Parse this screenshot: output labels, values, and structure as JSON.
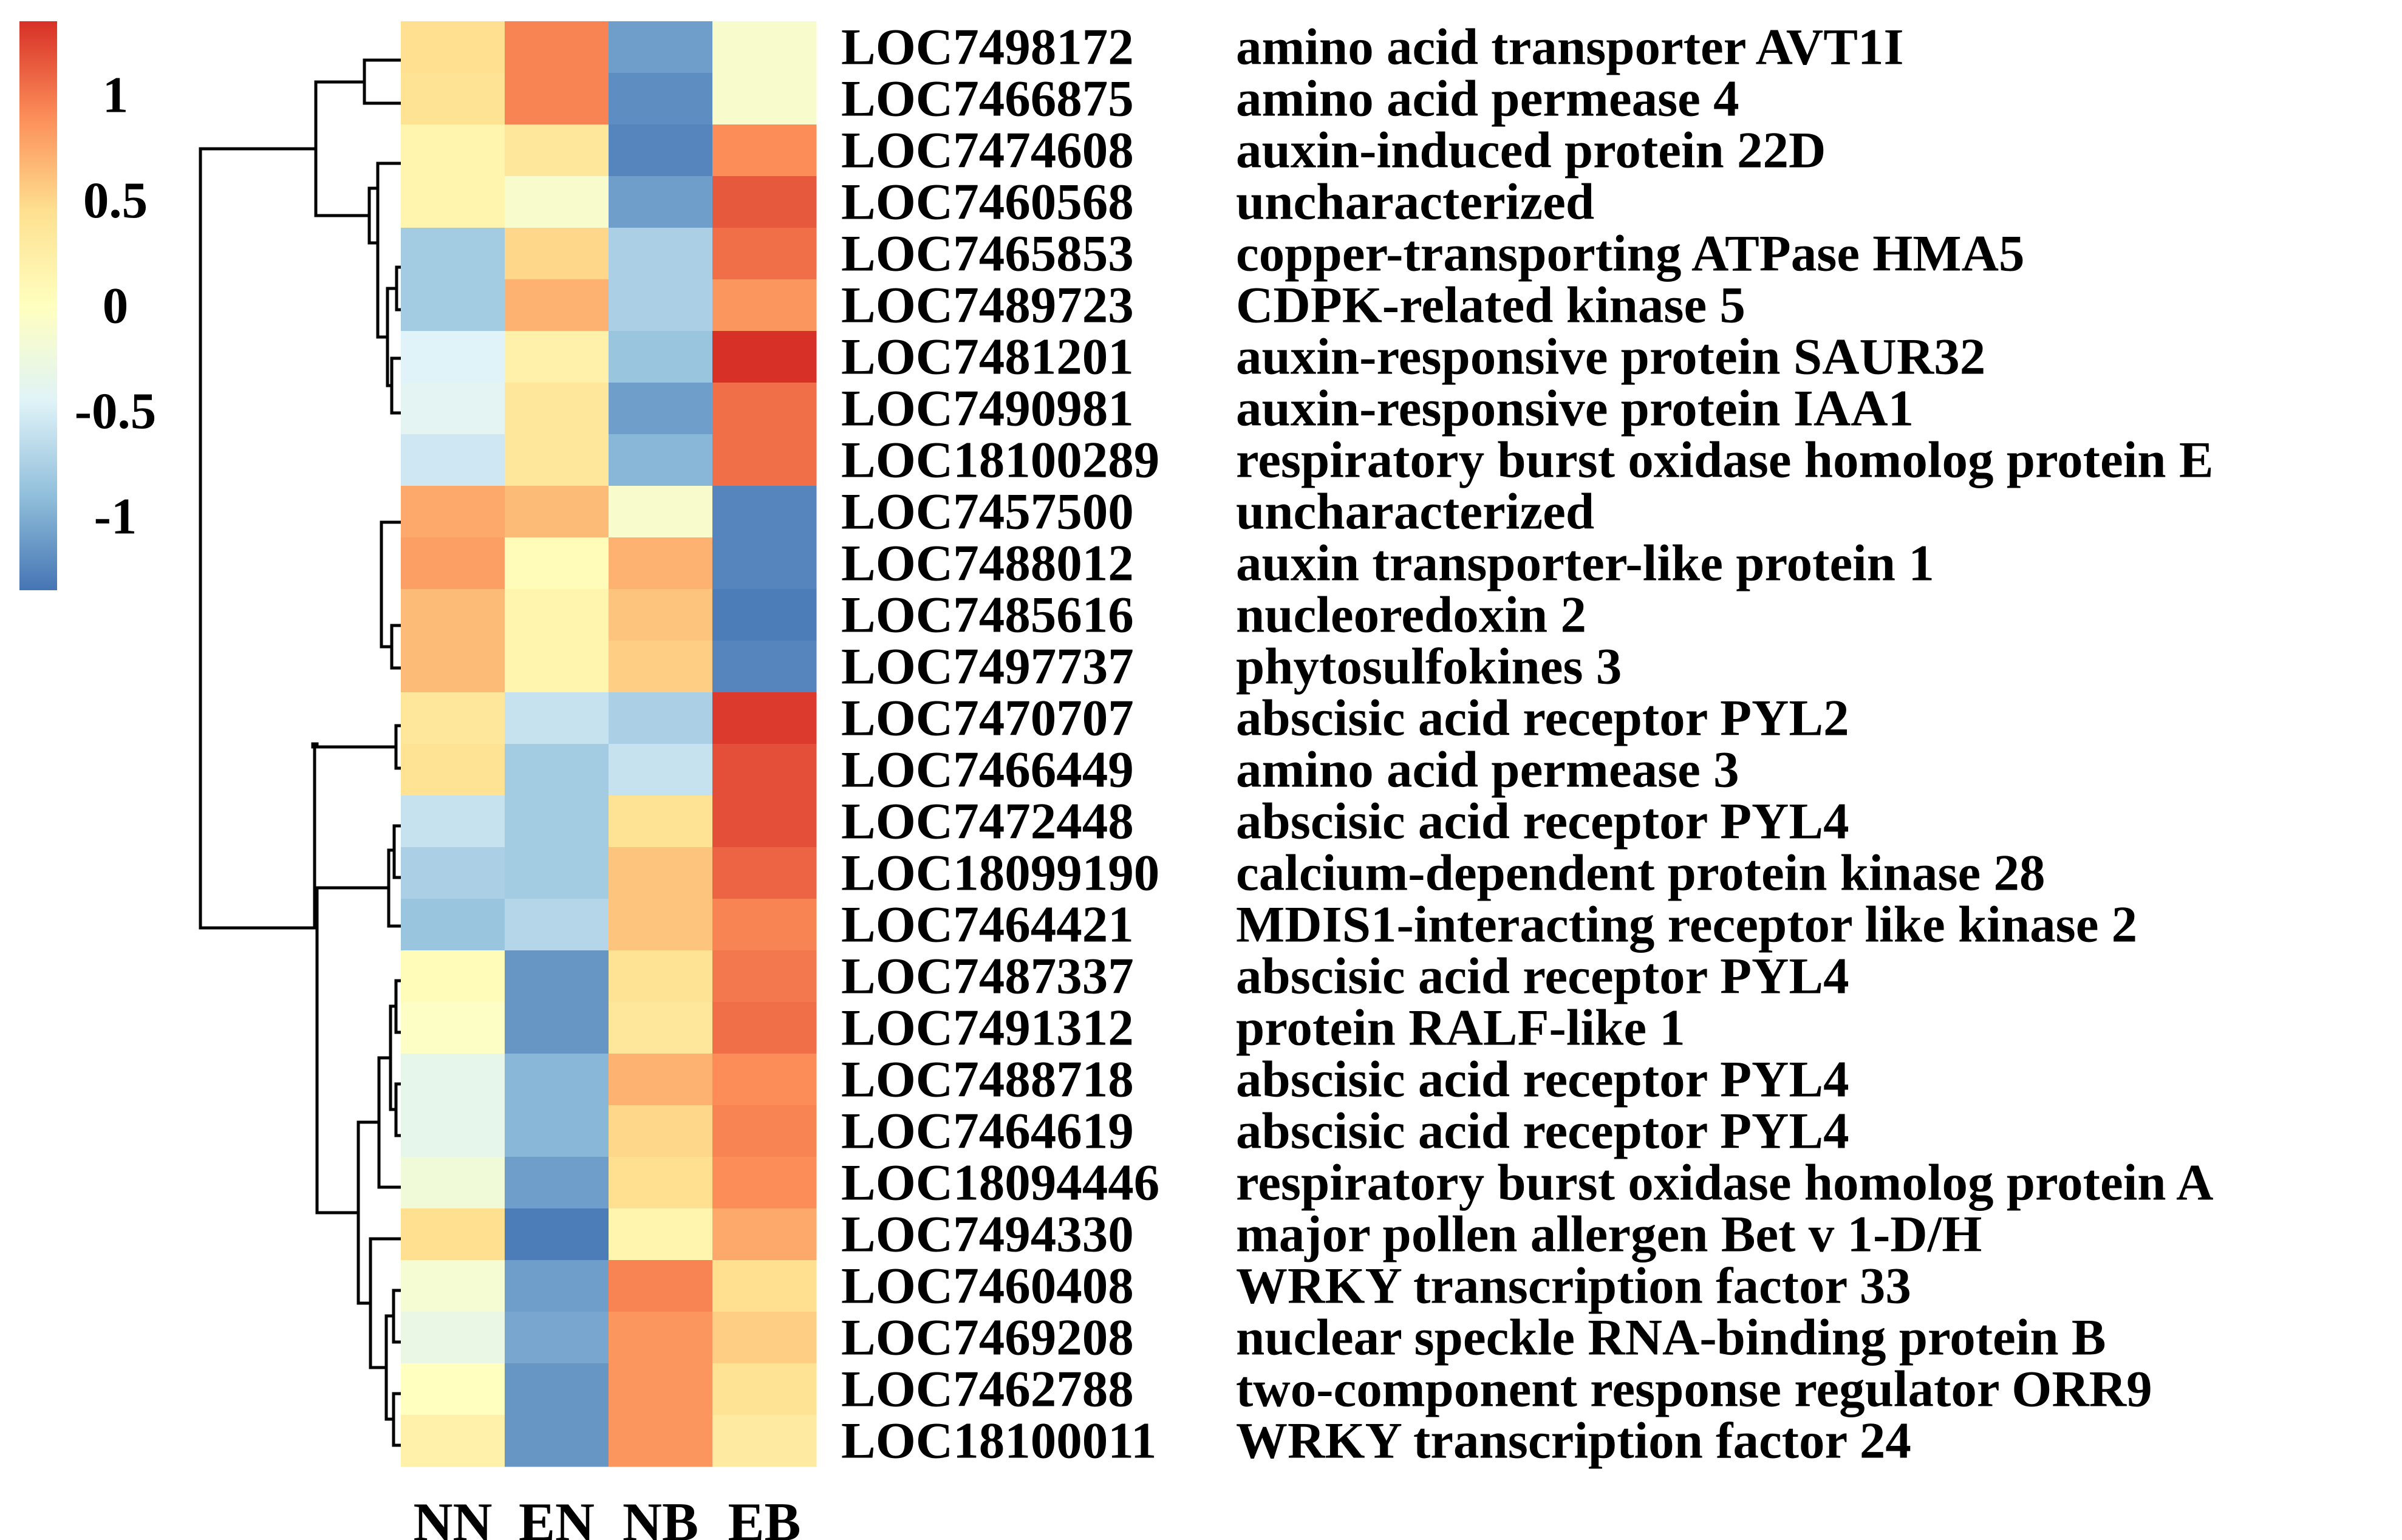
{
  "chart_data": {
    "type": "heatmap",
    "title": "",
    "columns": [
      "NN",
      "EN",
      "NB",
      "EB"
    ],
    "rows": [
      {
        "id": "LOC7498172",
        "label": "amino acid transporter AVT1I",
        "values": [
          0.45,
          0.95,
          -1.1,
          -0.1
        ]
      },
      {
        "id": "LOC7466875",
        "label": "amino acid permease 4",
        "values": [
          0.4,
          0.95,
          -1.2,
          -0.1
        ]
      },
      {
        "id": "LOC7474608",
        "label": "auxin-induced protein 22D",
        "values": [
          0.15,
          0.35,
          -1.25,
          0.9
        ]
      },
      {
        "id": "LOC7460568",
        "label": "uncharacterized",
        "values": [
          0.15,
          -0.1,
          -1.1,
          1.15
        ]
      },
      {
        "id": "LOC7465853",
        "label": "copper-transporting ATPase HMA5",
        "values": [
          -0.8,
          0.5,
          -0.75,
          1.05
        ]
      },
      {
        "id": "LOC7489723",
        "label": "CDPK-related kinase 5",
        "values": [
          -0.8,
          0.7,
          -0.75,
          0.85
        ]
      },
      {
        "id": "LOC7481201",
        "label": "auxin-responsive protein SAUR32",
        "values": [
          -0.45,
          0.2,
          -0.85,
          1.35
        ]
      },
      {
        "id": "LOC7490981",
        "label": "auxin-responsive protein IAA1",
        "values": [
          -0.4,
          0.35,
          -1.1,
          1.05
        ]
      },
      {
        "id": "LOC18100289",
        "label": "respiratory burst oxidase homolog protein E",
        "values": [
          -0.55,
          0.35,
          -0.95,
          1.05
        ]
      },
      {
        "id": "LOC7457500",
        "label": "uncharacterized",
        "values": [
          0.75,
          0.65,
          -0.1,
          -1.25
        ]
      },
      {
        "id": "LOC7488012",
        "label": "auxin transporter-like protein 1",
        "values": [
          0.8,
          0.05,
          0.7,
          -1.25
        ]
      },
      {
        "id": "LOC7485616",
        "label": "nucleoredoxin 2",
        "values": [
          0.65,
          0.15,
          0.6,
          -1.3
        ]
      },
      {
        "id": "LOC7497737",
        "label": "phytosulfokines 3",
        "values": [
          0.65,
          0.15,
          0.55,
          -1.25
        ]
      },
      {
        "id": "LOC7470707",
        "label": "abscisic acid receptor PYL2",
        "values": [
          0.35,
          -0.6,
          -0.75,
          1.3
        ]
      },
      {
        "id": "LOC7466449",
        "label": "amino acid permease 3",
        "values": [
          0.4,
          -0.8,
          -0.6,
          1.2
        ]
      },
      {
        "id": "LOC7472448",
        "label": "abscisic acid receptor PYL4",
        "values": [
          -0.6,
          -0.8,
          0.4,
          1.2
        ]
      },
      {
        "id": "LOC18099190",
        "label": "calcium-dependent protein kinase 28",
        "values": [
          -0.75,
          -0.8,
          0.6,
          1.1
        ]
      },
      {
        "id": "LOC7464421",
        "label": "MDIS1-interacting receptor like kinase 2",
        "values": [
          -0.85,
          -0.7,
          0.6,
          0.95
        ]
      },
      {
        "id": "LOC7487337",
        "label": "abscisic acid receptor PYL4",
        "values": [
          0.05,
          -1.15,
          0.4,
          1.0
        ]
      },
      {
        "id": "LOC7491312",
        "label": "protein RALF-like 1",
        "values": [
          -0.05,
          -1.15,
          0.35,
          1.05
        ]
      },
      {
        "id": "LOC7488718",
        "label": "abscisic acid receptor PYL4",
        "values": [
          -0.35,
          -0.95,
          0.7,
          0.9
        ]
      },
      {
        "id": "LOC7464619",
        "label": "abscisic acid receptor PYL4",
        "values": [
          -0.35,
          -0.95,
          0.5,
          0.95
        ]
      },
      {
        "id": "LOC18094446",
        "label": "respiratory burst oxidase homolog protein A",
        "values": [
          -0.2,
          -1.1,
          0.45,
          0.9
        ]
      },
      {
        "id": "LOC7494330",
        "label": "major pollen allergen Bet v 1-D/H",
        "values": [
          0.45,
          -1.3,
          0.15,
          0.75
        ]
      },
      {
        "id": "LOC7460408",
        "label": "WRKY transcription factor 33",
        "values": [
          -0.15,
          -1.1,
          0.95,
          0.45
        ]
      },
      {
        "id": "LOC7469208",
        "label": "nuclear speckle RNA-binding protein B",
        "values": [
          -0.3,
          -1.05,
          0.85,
          0.55
        ]
      },
      {
        "id": "LOC7462788",
        "label": "two-component response regulator ORR9",
        "values": [
          0.0,
          -1.15,
          0.85,
          0.4
        ]
      },
      {
        "id": "LOC18100011",
        "label": "WRKY transcription factor 24",
        "values": [
          0.2,
          -1.15,
          0.85,
          0.3
        ]
      }
    ],
    "color_scale": {
      "min": -1.35,
      "max": 1.35,
      "stops": [
        "#4575b4",
        "#91bfdb",
        "#e0f3f8",
        "#ffffbf",
        "#fee090",
        "#fc8d59",
        "#d73027"
      ]
    },
    "legend": {
      "placement": "top-left",
      "ticks": [
        {
          "value": 1,
          "label": "1"
        },
        {
          "value": 0.5,
          "label": "0.5"
        },
        {
          "value": 0,
          "label": "0"
        },
        {
          "value": -0.5,
          "label": "-0.5"
        },
        {
          "value": -1,
          "label": "-1"
        }
      ]
    },
    "row_dendrogram": true,
    "column_dendrogram": false
  }
}
